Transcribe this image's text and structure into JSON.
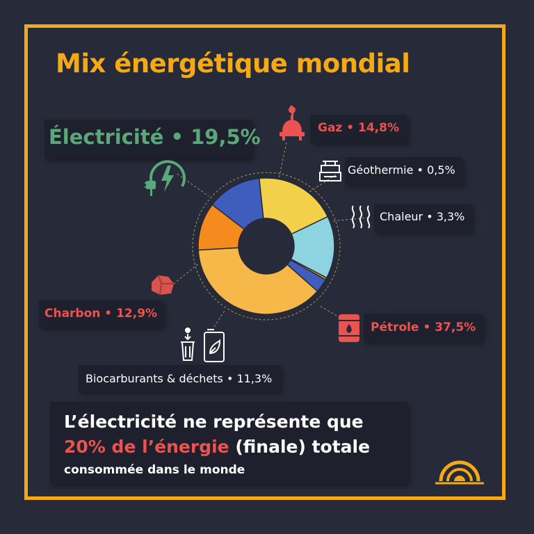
{
  "title": "Mix énergétique mondial",
  "colors": {
    "frame": "#f5a915",
    "background": "#272a38",
    "accent_red": "#ea5350",
    "accent_green": "#5aa87a"
  },
  "labels": {
    "electricite": "Électricité • 19,5%",
    "gaz": "Gaz • 14,8%",
    "geothermie": "Géothermie • 0,5%",
    "chaleur": "Chaleur • 3,3%",
    "petrole": "Pétrole • 37,5%",
    "charbon": "Charbon • 12,9%",
    "biocarburants": "Biocarburants & déchets • 11,3%"
  },
  "footer": {
    "line1": "L’électricité ne représente que",
    "line2_highlight": "20% de l’énergie",
    "line2_rest": " (finale) totale",
    "line3": "consommée dans le monde"
  },
  "icons": {
    "electricite": "plug-lightning-icon",
    "gaz": "gas-burner-icon",
    "geothermie": "geothermal-icon",
    "chaleur": "heat-waves-icon",
    "petrole": "oil-barrel-icon",
    "charbon": "coal-icon",
    "biocarburants": "bin-and-biofuel-icon",
    "logo": "logo-icon"
  },
  "chart_data": {
    "type": "pie",
    "variant": "donut",
    "title": "Mix énergétique mondial",
    "unit": "%",
    "series": [
      {
        "name": "Électricité",
        "value": 19.5,
        "color": "#f3d04a"
      },
      {
        "name": "Gaz",
        "value": 14.8,
        "color": "#8dd3e0"
      },
      {
        "name": "Géothermie",
        "value": 0.5,
        "color": "#f5a915"
      },
      {
        "name": "Chaleur",
        "value": 3.3,
        "color": "#3f5dbd"
      },
      {
        "name": "Pétrole",
        "value": 37.5,
        "color": "#f7b84a"
      },
      {
        "name": "Biocarburants & déchets",
        "value": 11.3,
        "color": "#f58b1f"
      },
      {
        "name": "Charbon",
        "value": 12.9,
        "color": "#3f5dbd"
      }
    ],
    "start_angle_deg": -96
  }
}
